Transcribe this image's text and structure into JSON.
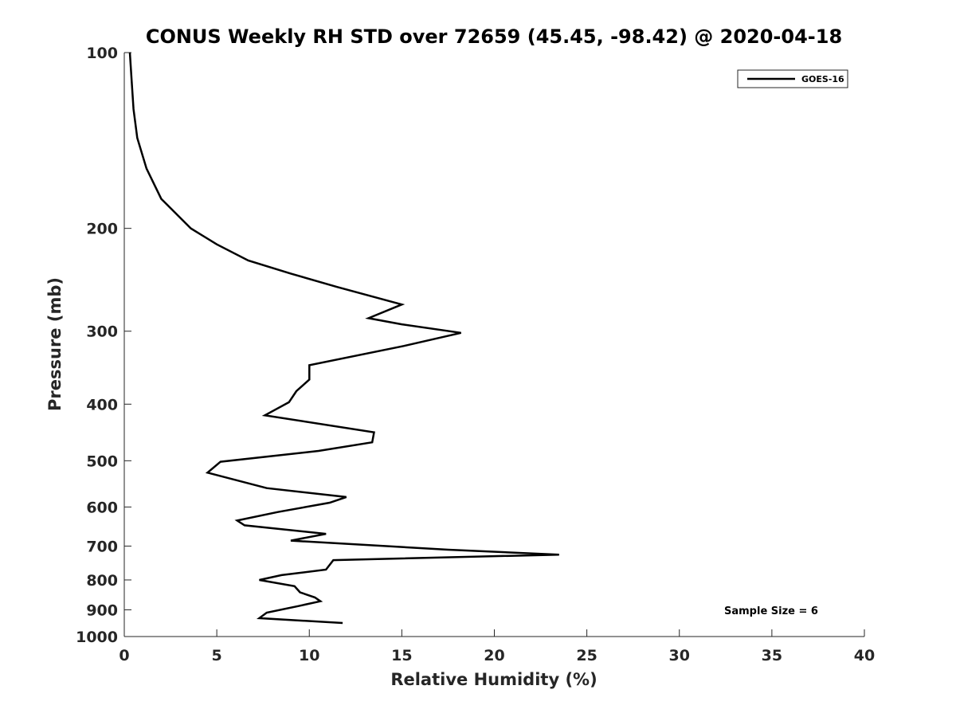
{
  "chart_data": {
    "type": "line",
    "title": "CONUS Weekly RH STD over 72659 (45.45, -98.42) @ 2020-04-18",
    "xlabel": "Relative Humidity (%)",
    "ylabel": "Pressure (mb)",
    "xlim": [
      0,
      40
    ],
    "ylim": [
      100,
      1000
    ],
    "y_scale": "log",
    "y_reversed": true,
    "grid": false,
    "legend_position": "top-right",
    "x_ticks": [
      "0",
      "5",
      "10",
      "15",
      "20",
      "25",
      "30",
      "35",
      "40"
    ],
    "y_ticks": [
      "100",
      "200",
      "300",
      "400",
      "500",
      "600",
      "700",
      "800",
      "900",
      "1000"
    ],
    "annotation": "Sample Size = 6",
    "series": [
      {
        "name": "GOES-16",
        "color": "#000000",
        "points": [
          [
            0.3,
            100
          ],
          [
            0.4,
            112
          ],
          [
            0.5,
            125
          ],
          [
            0.7,
            140
          ],
          [
            1.2,
            158
          ],
          [
            2.0,
            178
          ],
          [
            3.6,
            200
          ],
          [
            5.0,
            213
          ],
          [
            6.7,
            227
          ],
          [
            9.0,
            239
          ],
          [
            11.5,
            252
          ],
          [
            15.0,
            270
          ],
          [
            13.2,
            285
          ],
          [
            15.0,
            292
          ],
          [
            18.2,
            302
          ],
          [
            15.1,
            318
          ],
          [
            10.0,
            343
          ],
          [
            10.0,
            363
          ],
          [
            9.3,
            380
          ],
          [
            8.9,
            397
          ],
          [
            7.6,
            418
          ],
          [
            13.5,
            447
          ],
          [
            13.4,
            465
          ],
          [
            10.5,
            481
          ],
          [
            5.2,
            502
          ],
          [
            4.5,
            524
          ],
          [
            7.7,
            557
          ],
          [
            12.0,
            577
          ],
          [
            11.1,
            590
          ],
          [
            8.3,
            612
          ],
          [
            6.1,
            633
          ],
          [
            6.5,
            645
          ],
          [
            10.9,
            667
          ],
          [
            9.0,
            685
          ],
          [
            17.5,
            710
          ],
          [
            23.5,
            724
          ],
          [
            11.3,
            740
          ],
          [
            10.9,
            768
          ],
          [
            8.5,
            785
          ],
          [
            7.3,
            800
          ],
          [
            9.2,
            820
          ],
          [
            9.5,
            840
          ],
          [
            10.3,
            857
          ],
          [
            10.6,
            870
          ],
          [
            9.4,
            887
          ],
          [
            7.7,
            910
          ],
          [
            7.3,
            930
          ],
          [
            11.8,
            948
          ]
        ]
      }
    ]
  }
}
